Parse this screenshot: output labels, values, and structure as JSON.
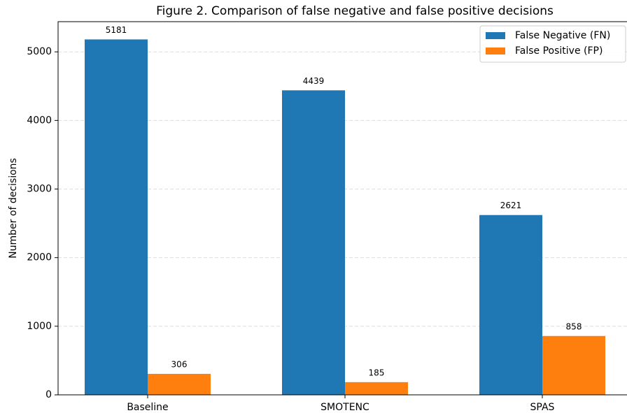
{
  "chart_data": {
    "type": "bar",
    "title": "Figure 2. Comparison of false negative and false positive decisions",
    "y_label": "Number of decisions",
    "categories": [
      "Baseline",
      "SMOTENC",
      "SPAS"
    ],
    "series": [
      {
        "name": "False Negative (FN)",
        "color": "#1f77b4",
        "values": [
          5181,
          4439,
          2621
        ]
      },
      {
        "name": "False Positive (FP)",
        "color": "#ff7f0e",
        "values": [
          306,
          185,
          858
        ]
      }
    ],
    "ylim": [
      0,
      5440
    ],
    "yticks": [
      0,
      1000,
      2000,
      3000,
      4000,
      5000
    ],
    "grid": true,
    "legend": "upper right"
  }
}
